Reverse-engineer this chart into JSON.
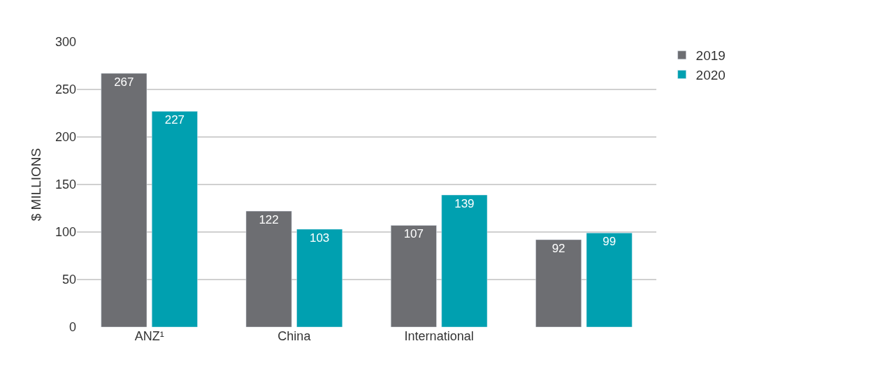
{
  "chart_data": {
    "type": "bar",
    "ylabel": "$ MILLIONS",
    "categories": [
      "ANZ¹",
      "China",
      "International",
      null
    ],
    "series": [
      {
        "name": "2019",
        "color": "#6d6e72",
        "values": [
          267,
          122,
          107,
          92
        ]
      },
      {
        "name": "2020",
        "color": "#00a0b0",
        "values": [
          227,
          103,
          139,
          99
        ]
      }
    ],
    "ylim": [
      0,
      300
    ],
    "yticks": [
      0,
      50,
      100,
      150,
      200,
      250,
      300
    ],
    "grid": "y",
    "legend": "top right",
    "data_labels": true
  }
}
